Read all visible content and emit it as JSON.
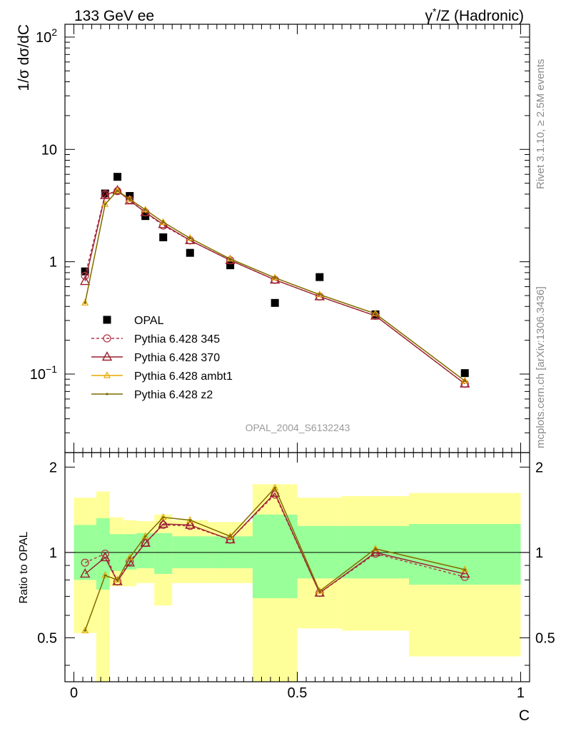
{
  "header": {
    "left": "133 GeV ee",
    "right_gamma": "γ",
    "right_star": "*",
    "right_rest": "/Z (Hadronic)"
  },
  "side_labels": {
    "top": "Rivet 3.1.10, ≥ 2.5M events",
    "bottom": "mcplots.cern.ch [arXiv:1306.3436]"
  },
  "watermark": "OPAL_2004_S6132243",
  "colors": {
    "data": "#000000",
    "p345": "#b03a4a",
    "p370": "#9a1f2e",
    "ambt1": "#e8a800",
    "z2": "#7a6a00",
    "band_inner": "#99ff99",
    "band_outer": "#ffff99"
  },
  "chart_data": [
    {
      "type": "line",
      "title": "",
      "xlabel": "",
      "ylabel": "1/σ dσ/dC",
      "yscale": "log",
      "ylim": [
        0.02,
        130
      ],
      "xlim": [
        -0.02,
        1.02
      ],
      "y_ticks": [
        {
          "v": 0.1,
          "base": "10",
          "exp": "−1"
        },
        {
          "v": 1,
          "base": "1",
          "exp": ""
        },
        {
          "v": 10,
          "base": "10",
          "exp": ""
        },
        {
          "v": 100,
          "base": "10",
          "exp": "2"
        }
      ],
      "x": [
        0.025,
        0.07,
        0.0975,
        0.125,
        0.16,
        0.2,
        0.26,
        0.35,
        0.45,
        0.55,
        0.675,
        0.875
      ],
      "series": [
        {
          "name": "OPAL",
          "key": "data",
          "marker": "square",
          "values": [
            0.82,
            4.05,
            5.7,
            3.85,
            2.55,
            1.65,
            1.2,
            0.93,
            0.43,
            0.73,
            0.34,
            0.102
          ]
        },
        {
          "name": "Pythia 6.428 345",
          "key": "p345",
          "marker": "circle",
          "dashed": true,
          "values": [
            0.75,
            4.0,
            4.25,
            3.55,
            2.75,
            2.1,
            1.55,
            1.03,
            0.69,
            0.49,
            0.33,
            0.082
          ]
        },
        {
          "name": "Pythia 6.428 370",
          "key": "p370",
          "marker": "triangle",
          "values": [
            0.67,
            3.9,
            4.3,
            3.5,
            2.75,
            2.15,
            1.55,
            1.03,
            0.69,
            0.49,
            0.33,
            0.082
          ]
        },
        {
          "name": "Pythia 6.428 ambt1",
          "key": "ambt1",
          "marker": "smalltriangle",
          "values": [
            0.43,
            3.25,
            4.3,
            3.6,
            2.9,
            2.25,
            1.62,
            1.06,
            0.72,
            0.51,
            0.345,
            0.087
          ]
        },
        {
          "name": "Pythia 6.428 z2",
          "key": "z2",
          "marker": "dot",
          "values": [
            0.43,
            3.25,
            4.3,
            3.6,
            2.9,
            2.25,
            1.62,
            1.06,
            0.72,
            0.51,
            0.345,
            0.087
          ]
        }
      ]
    },
    {
      "type": "line",
      "title": "",
      "xlabel": "C",
      "ylabel": "Ratio to OPAL",
      "yscale": "log",
      "ylim": [
        0.35,
        2.25
      ],
      "xlim": [
        -0.02,
        1.02
      ],
      "x_ticks": [
        {
          "v": 0,
          "label": "0"
        },
        {
          "v": 0.5,
          "label": "0.5"
        },
        {
          "v": 1,
          "label": "1"
        }
      ],
      "y_ticks": [
        {
          "v": 0.5,
          "label": "0.5"
        },
        {
          "v": 1,
          "label": "1"
        },
        {
          "v": 2,
          "label": "2"
        }
      ],
      "bins": [
        {
          "lo": 0.0,
          "hi": 0.05,
          "in_lo": 0.8,
          "in_hi": 1.25,
          "out_lo": 0.52,
          "out_hi": 1.56
        },
        {
          "lo": 0.05,
          "hi": 0.08,
          "in_lo": 0.74,
          "in_hi": 1.32,
          "out_lo": 0.35,
          "out_hi": 1.64
        },
        {
          "lo": 0.08,
          "hi": 0.11,
          "in_lo": 0.86,
          "in_hi": 1.16,
          "out_lo": 0.76,
          "out_hi": 1.33
        },
        {
          "lo": 0.11,
          "hi": 0.14,
          "in_lo": 0.87,
          "in_hi": 1.16,
          "out_lo": 0.76,
          "out_hi": 1.3
        },
        {
          "lo": 0.14,
          "hi": 0.18,
          "in_lo": 0.88,
          "in_hi": 1.17,
          "out_lo": 0.78,
          "out_hi": 1.29
        },
        {
          "lo": 0.18,
          "hi": 0.22,
          "in_lo": 0.84,
          "in_hi": 1.17,
          "out_lo": 0.65,
          "out_hi": 1.36
        },
        {
          "lo": 0.22,
          "hi": 0.3,
          "in_lo": 0.88,
          "in_hi": 1.14,
          "out_lo": 0.78,
          "out_hi": 1.3
        },
        {
          "lo": 0.3,
          "hi": 0.4,
          "in_lo": 0.88,
          "in_hi": 1.14,
          "out_lo": 0.78,
          "out_hi": 1.28
        },
        {
          "lo": 0.4,
          "hi": 0.5,
          "in_lo": 0.69,
          "in_hi": 1.36,
          "out_lo": 0.35,
          "out_hi": 1.74
        },
        {
          "lo": 0.5,
          "hi": 0.6,
          "in_lo": 0.81,
          "in_hi": 1.24,
          "out_lo": 0.54,
          "out_hi": 1.56
        },
        {
          "lo": 0.6,
          "hi": 0.75,
          "in_lo": 0.81,
          "in_hi": 1.24,
          "out_lo": 0.53,
          "out_hi": 1.58
        },
        {
          "lo": 0.75,
          "hi": 1.0,
          "in_lo": 0.77,
          "in_hi": 1.26,
          "out_lo": 0.43,
          "out_hi": 1.62
        }
      ],
      "x": [
        0.025,
        0.07,
        0.0975,
        0.125,
        0.16,
        0.2,
        0.26,
        0.35,
        0.45,
        0.55,
        0.675,
        0.875
      ],
      "series": [
        {
          "name": "Pythia 6.428 345",
          "key": "p345",
          "marker": "circle",
          "dashed": true,
          "values": [
            0.92,
            0.99,
            0.79,
            0.93,
            1.08,
            1.25,
            1.24,
            1.11,
            1.6,
            0.72,
            0.99,
            0.82
          ]
        },
        {
          "name": "Pythia 6.428 370",
          "key": "p370",
          "marker": "triangle",
          "values": [
            0.84,
            0.96,
            0.79,
            0.92,
            1.08,
            1.26,
            1.25,
            1.11,
            1.62,
            0.72,
            1.0,
            0.84
          ]
        },
        {
          "name": "Pythia 6.428 ambt1",
          "key": "ambt1",
          "marker": "smalltriangle",
          "values": [
            0.53,
            0.83,
            0.8,
            0.96,
            1.14,
            1.33,
            1.3,
            1.14,
            1.69,
            0.73,
            1.03,
            0.87
          ]
        },
        {
          "name": "Pythia 6.428 z2",
          "key": "z2",
          "marker": "dot",
          "values": [
            0.53,
            0.83,
            0.8,
            0.96,
            1.14,
            1.33,
            1.3,
            1.14,
            1.69,
            0.73,
            1.03,
            0.87
          ]
        }
      ]
    }
  ]
}
